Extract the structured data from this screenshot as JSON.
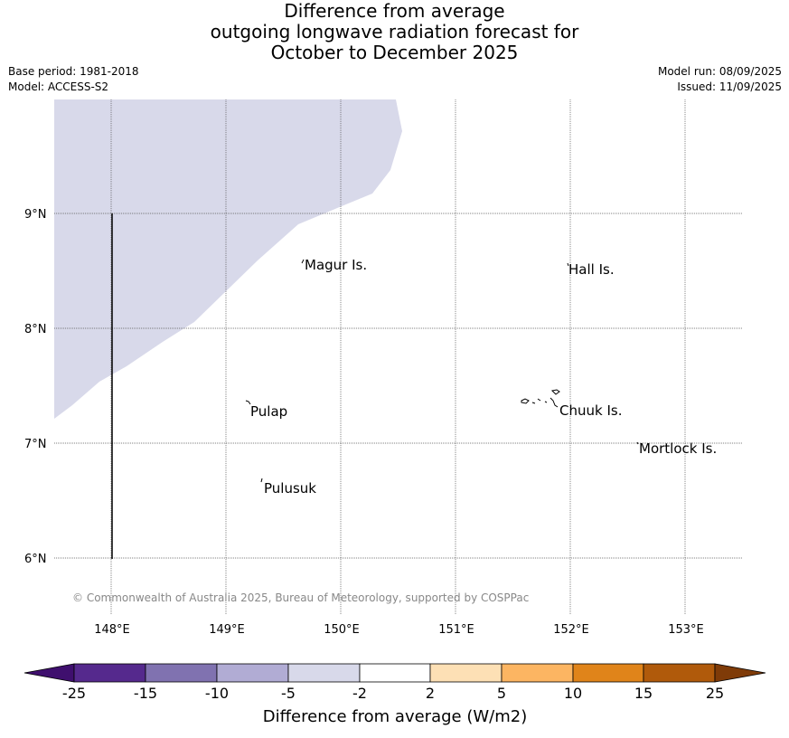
{
  "title": {
    "line1": "Difference from average",
    "line2": "outgoing longwave radiation forecast for",
    "line3": "October to December 2025"
  },
  "meta": {
    "base_period": "Base period: 1981-2018",
    "model": "Model: ACCESS-S2",
    "model_run": "Model run: 08/09/2025",
    "issued": "Issued: 11/09/2025"
  },
  "map": {
    "lon_ticks": [
      "148°E",
      "149°E",
      "150°E",
      "151°E",
      "152°E",
      "153°E"
    ],
    "lat_ticks": [
      "9°N",
      "8°N",
      "7°N",
      "6°N"
    ],
    "places": [
      {
        "name": "Magur Is."
      },
      {
        "name": "Hall Is."
      },
      {
        "name": "Pulap"
      },
      {
        "name": "Chuuk Is."
      },
      {
        "name": "Mortlock Is."
      },
      {
        "name": "Pulusuk"
      }
    ],
    "shaded_category": "-5 to -2",
    "shaded_color": "#d8d9ea",
    "copyright": "© Commonwealth of Australia 2025, Bureau of Meteorology, supported by COSPPac"
  },
  "colorbar": {
    "label": "Difference from average (W/m2)",
    "tick_labels": [
      "-25",
      "-15",
      "-10",
      "-5",
      "-2",
      "2",
      "5",
      "10",
      "15",
      "25"
    ],
    "colors": [
      "#3f0f6e",
      "#55298d",
      "#8072b0",
      "#b1acd4",
      "#d8d9ea",
      "#ffffff",
      "#fde0b5",
      "#fcb562",
      "#e0841a",
      "#b05a0b",
      "#7f3b08"
    ]
  }
}
